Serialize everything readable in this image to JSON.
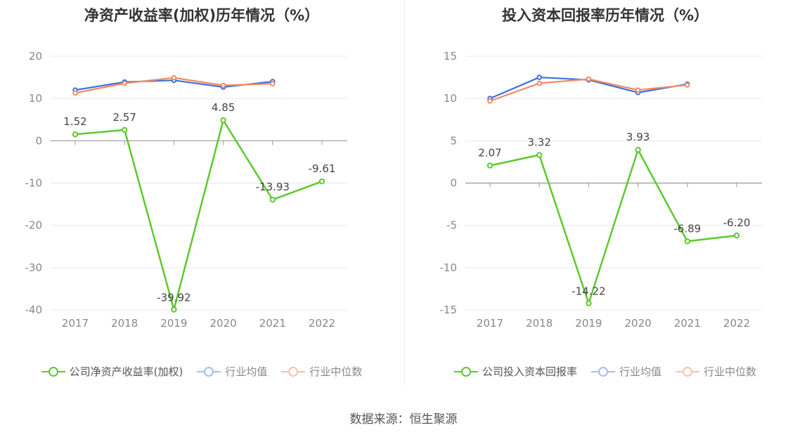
{
  "source_text": "数据来源：恒生聚源",
  "chart_data": [
    {
      "type": "line",
      "title": "净资产收益率(加权)历年情况（%）",
      "categories": [
        "2017",
        "2018",
        "2019",
        "2020",
        "2021",
        "2022"
      ],
      "ylim": [
        -40,
        20
      ],
      "yticks": [
        20,
        10,
        0,
        -10,
        -20,
        -30,
        -40
      ],
      "grid": true,
      "legend_position": "bottom",
      "series": [
        {
          "name": "公司净资产收益率(加权)",
          "color": "#5cc92e",
          "values": [
            1.52,
            2.57,
            -39.92,
            4.85,
            -13.93,
            -9.61
          ],
          "labels": [
            "1.52",
            "2.57",
            "-39.92",
            "4.85",
            "-13.93",
            "-9.61"
          ]
        },
        {
          "name": "行业均值",
          "color": "#3f6fd9",
          "values": [
            12.0,
            13.9,
            14.3,
            12.7,
            14.0,
            null
          ]
        },
        {
          "name": "行业中位数",
          "color": "#f28a63",
          "values": [
            11.3,
            13.6,
            14.9,
            13.1,
            13.5,
            null
          ]
        }
      ]
    },
    {
      "type": "line",
      "title": "投入资本回报率历年情况（%）",
      "categories": [
        "2017",
        "2018",
        "2019",
        "2020",
        "2021",
        "2022"
      ],
      "ylim": [
        -15,
        15
      ],
      "yticks": [
        15,
        10,
        5,
        0,
        -5,
        -10,
        -15
      ],
      "grid": true,
      "legend_position": "bottom",
      "series": [
        {
          "name": "公司投入资本回报率",
          "color": "#5cc92e",
          "values": [
            2.07,
            3.32,
            -14.22,
            3.93,
            -6.89,
            -6.2
          ],
          "labels": [
            "2.07",
            "3.32",
            "-14.22",
            "3.93",
            "-6.89",
            "-6.20"
          ]
        },
        {
          "name": "行业均值",
          "color": "#3f6fd9",
          "values": [
            10.0,
            12.5,
            12.2,
            10.7,
            11.7,
            null
          ]
        },
        {
          "name": "行业中位数",
          "color": "#f28a63",
          "values": [
            9.7,
            11.8,
            12.3,
            11.0,
            11.6,
            null
          ]
        }
      ]
    }
  ]
}
